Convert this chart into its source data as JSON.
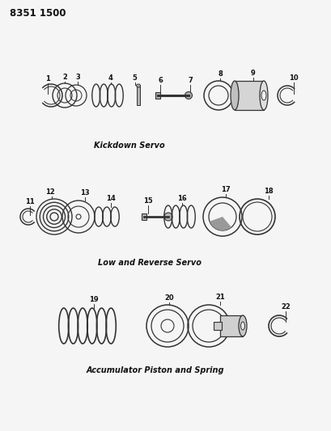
{
  "title_code": "8351 1500",
  "background_color": "#f5f5f5",
  "line_color": "#333333",
  "section1_label": "Kickdown Servo",
  "section2_label": "Low and Reverse Servo",
  "section3_label": "Accumulator Piston and Spring",
  "fig_width": 4.1,
  "fig_height": 5.33,
  "dpi": 100
}
